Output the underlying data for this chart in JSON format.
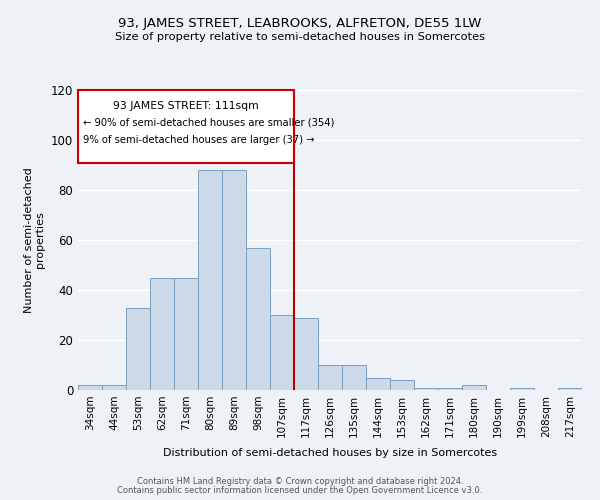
{
  "title1": "93, JAMES STREET, LEABROOKS, ALFRETON, DE55 1LW",
  "title2": "Size of property relative to semi-detached houses in Somercotes",
  "xlabel": "Distribution of semi-detached houses by size in Somercotes",
  "ylabel": "Number of semi-detached\nproperties",
  "categories": [
    "34sqm",
    "44sqm",
    "53sqm",
    "62sqm",
    "71sqm",
    "80sqm",
    "89sqm",
    "98sqm",
    "107sqm",
    "117sqm",
    "126sqm",
    "135sqm",
    "144sqm",
    "153sqm",
    "162sqm",
    "171sqm",
    "180sqm",
    "190sqm",
    "199sqm",
    "208sqm",
    "217sqm"
  ],
  "values": [
    2,
    2,
    33,
    45,
    45,
    88,
    88,
    57,
    30,
    29,
    10,
    10,
    5,
    4,
    1,
    1,
    2,
    0,
    1,
    0,
    1
  ],
  "bar_color": "#ccd9e8",
  "bar_edge_color": "#7ba0be",
  "vline_x_idx": 8,
  "vline_color": "#bb0000",
  "annotation_title": "93 JAMES STREET: 111sqm",
  "annotation_line1": "← 90% of semi-detached houses are smaller (354)",
  "annotation_line2": "9% of semi-detached houses are larger (37) →",
  "annotation_box_color": "#cc0000",
  "ylim": [
    0,
    120
  ],
  "yticks": [
    0,
    20,
    40,
    60,
    80,
    100,
    120
  ],
  "footnote1": "Contains HM Land Registry data © Crown copyright and database right 2024.",
  "footnote2": "Contains public sector information licensed under the Open Government Licence v3.0.",
  "bg_color": "#eef2f7",
  "grid_color": "#ffffff"
}
